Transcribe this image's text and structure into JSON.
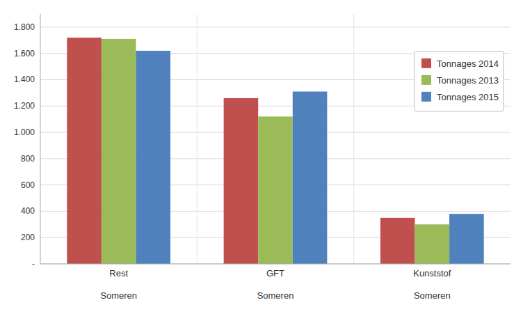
{
  "chart_data": {
    "type": "bar",
    "categories": [
      "Rest\n\nSomeren",
      "GFT\n\nSomeren",
      "Kunststof\n\nSomeren"
    ],
    "series": [
      {
        "name": "Tonnages 2014",
        "color": "#C0504D",
        "values": [
          1720,
          1260,
          350
        ]
      },
      {
        "name": "Tonnages 2013",
        "color": "#9BBB59",
        "values": [
          1710,
          1120,
          300
        ]
      },
      {
        "name": "Tonnages 2015",
        "color": "#4F81BD",
        "values": [
          1620,
          1310,
          380
        ]
      }
    ],
    "ylim": [
      0,
      1900
    ],
    "yticks": [
      {
        "value": 0,
        "label": "-"
      },
      200,
      400,
      600,
      800,
      {
        "value": 1000,
        "label": "1.000"
      },
      {
        "value": 1200,
        "label": "1.200"
      },
      {
        "value": 1400,
        "label": "1.400"
      },
      {
        "value": 1600,
        "label": "1.600"
      },
      {
        "value": 1800,
        "label": "1.800"
      }
    ],
    "grid": true,
    "legend": "upper right"
  }
}
